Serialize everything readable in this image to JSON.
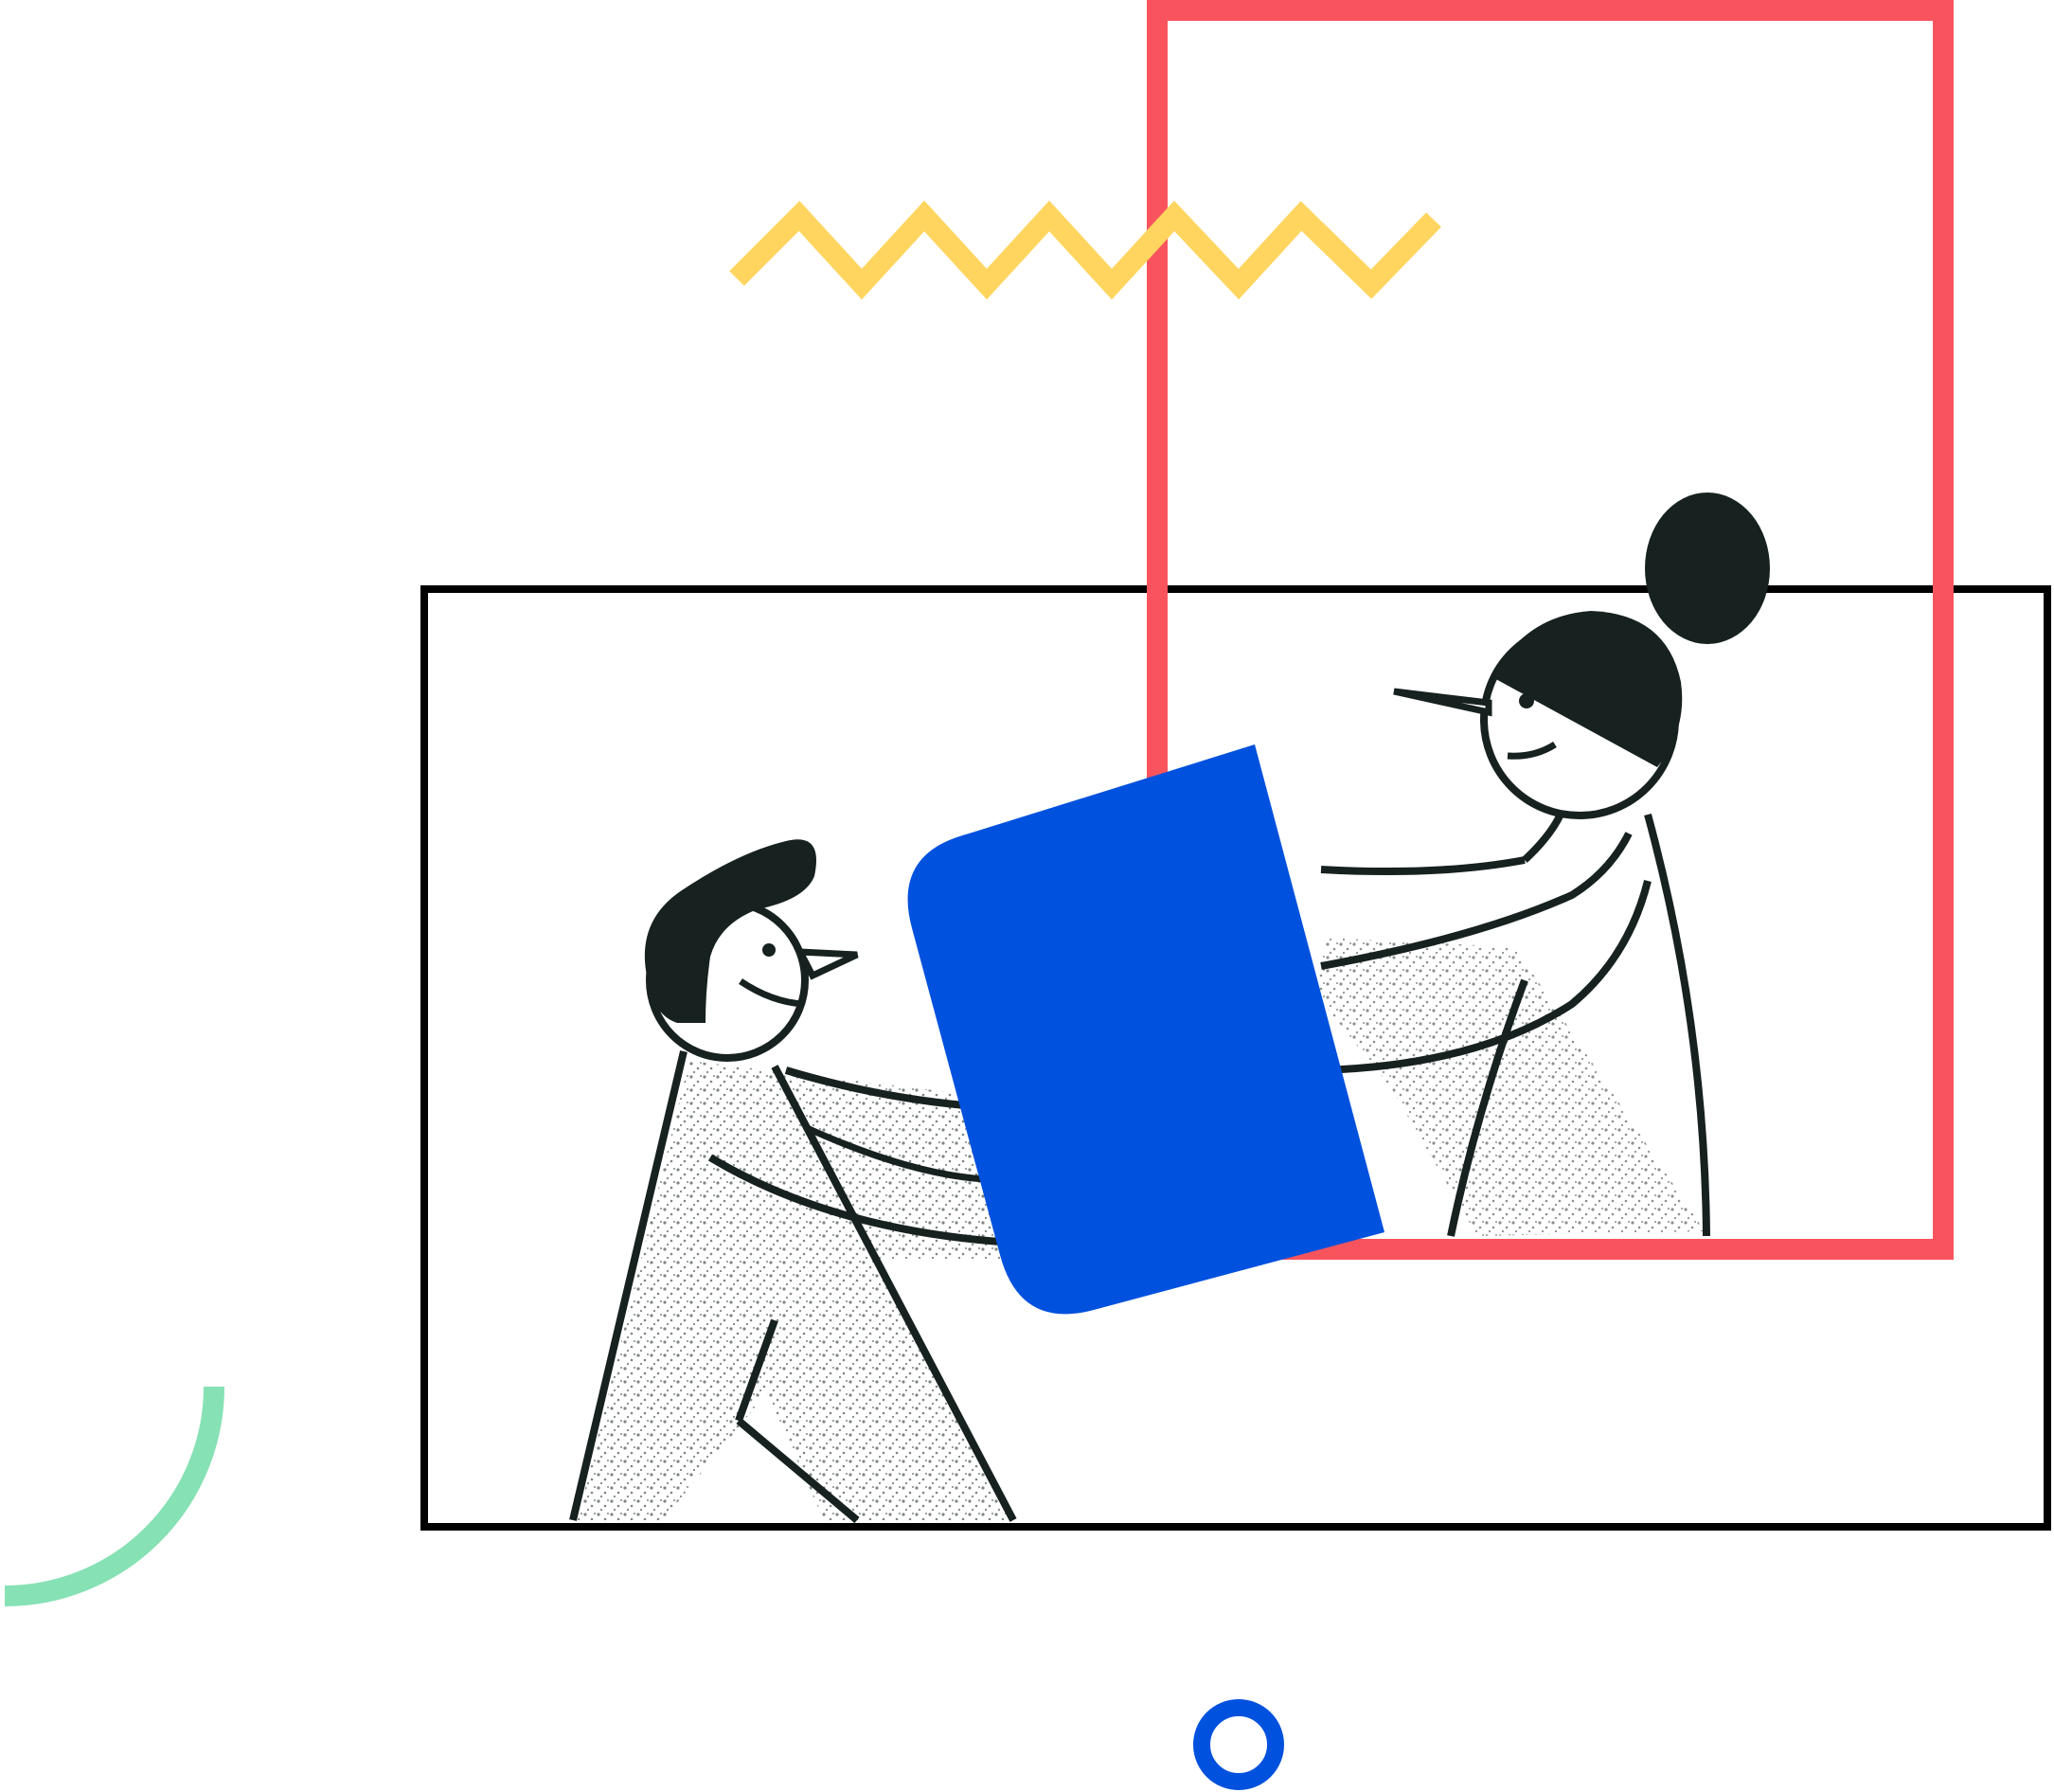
{
  "illustration": {
    "subject": "two-people-passing-document",
    "icons": [
      "zigzag-icon",
      "arc-icon",
      "ring-icon",
      "document-icon"
    ],
    "colors": {
      "background": "#ffffff",
      "outline": "#000000",
      "ink": "#17211f",
      "coral_frame": "#f9545e",
      "zigzag": "#ffd55f",
      "document": "#0051de",
      "arc": "#86e1b4",
      "ring": "#0051de"
    }
  }
}
